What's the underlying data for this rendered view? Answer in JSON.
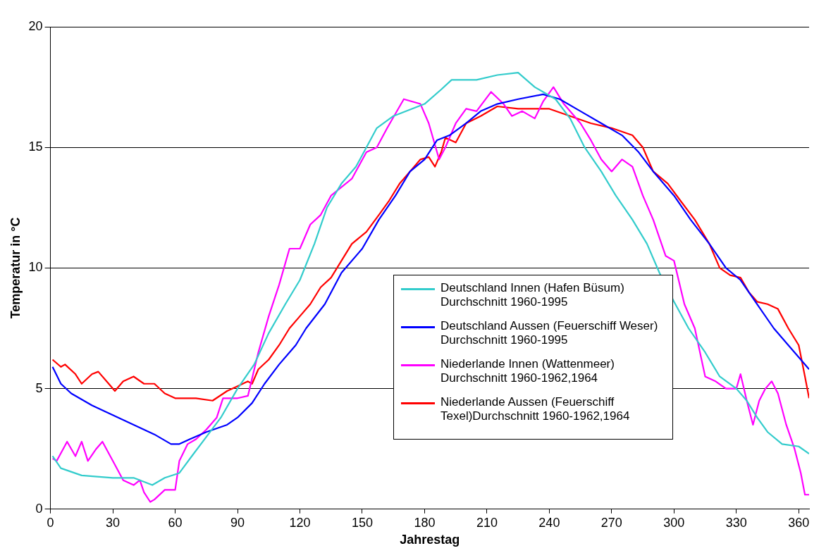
{
  "chart_data": {
    "type": "line",
    "xlabel": "Jahrestag",
    "ylabel": "Temperatur in °C",
    "xlim": [
      0,
      365
    ],
    "xticks": [
      0,
      30,
      60,
      90,
      120,
      150,
      180,
      210,
      240,
      270,
      300,
      330,
      360
    ],
    "ylim": [
      0,
      20
    ],
    "yticks": [
      0,
      5,
      10,
      15,
      20
    ],
    "grid": "y",
    "legend": "bottom right",
    "marker": "none",
    "line_style": "solid",
    "series": [
      {
        "name": "Deutschland Innen (Hafen Büsum) Durchschnitt 1960-1995",
        "color": "#33cccc",
        "x": [
          1,
          5,
          15,
          30,
          40,
          49,
          55,
          62,
          68,
          75,
          82,
          90,
          98,
          105,
          113,
          120,
          127,
          133,
          140,
          147,
          152,
          157,
          165,
          180,
          188,
          193,
          205,
          215,
          225,
          233,
          243,
          250,
          257,
          265,
          272,
          280,
          287,
          293,
          300,
          307,
          315,
          322,
          330,
          335,
          340,
          345,
          352,
          360,
          365
        ],
        "values": [
          2.2,
          1.7,
          1.4,
          1.3,
          1.3,
          1.0,
          1.3,
          1.5,
          2.2,
          3.0,
          3.8,
          5.0,
          6.0,
          7.3,
          8.5,
          9.5,
          11.0,
          12.5,
          13.5,
          14.2,
          15.0,
          15.8,
          16.3,
          16.8,
          17.4,
          17.8,
          17.8,
          18.0,
          18.1,
          17.5,
          17.0,
          16.2,
          15.0,
          14.0,
          13.0,
          12.0,
          11.0,
          9.8,
          8.6,
          7.5,
          6.5,
          5.5,
          5.0,
          4.5,
          3.8,
          3.2,
          2.7,
          2.6,
          2.3
        ]
      },
      {
        "name": "Deutschland Aussen (Feuerschiff Weser) Durchschnitt 1960-1995",
        "color": "#0000ff",
        "x": [
          1,
          5,
          10,
          20,
          30,
          40,
          50,
          58,
          62,
          67,
          75,
          85,
          90,
          97,
          103,
          110,
          118,
          123,
          132,
          140,
          150,
          158,
          166,
          173,
          180,
          186,
          192,
          200,
          207,
          215,
          225,
          237,
          245,
          255,
          265,
          275,
          283,
          290,
          300,
          308,
          317,
          325,
          332,
          340,
          348,
          355,
          361,
          365
        ],
        "values": [
          5.9,
          5.2,
          4.8,
          4.3,
          3.9,
          3.5,
          3.1,
          2.7,
          2.7,
          2.9,
          3.2,
          3.5,
          3.8,
          4.4,
          5.2,
          6.0,
          6.8,
          7.5,
          8.5,
          9.8,
          10.8,
          12.0,
          13.0,
          14.0,
          14.5,
          15.3,
          15.5,
          16.0,
          16.5,
          16.8,
          17.0,
          17.2,
          17.0,
          16.5,
          16.0,
          15.5,
          14.8,
          14.0,
          13.0,
          12.0,
          11.0,
          10.0,
          9.5,
          8.5,
          7.5,
          6.8,
          6.2,
          5.8
        ]
      },
      {
        "name": "Niederlande Innen (Wattenmeer) Durchschnitt 1960-1962,1964",
        "color": "#ff00ff",
        "x": [
          1,
          3,
          8,
          12,
          15,
          18,
          22,
          25,
          30,
          35,
          40,
          43,
          45,
          48,
          50,
          55,
          60,
          62,
          66,
          70,
          75,
          80,
          83,
          90,
          95,
          100,
          105,
          110,
          115,
          120,
          125,
          130,
          135,
          145,
          152,
          157,
          162,
          170,
          178,
          182,
          187,
          190,
          195,
          200,
          205,
          212,
          218,
          222,
          227,
          233,
          237,
          242,
          247,
          255,
          260,
          265,
          270,
          275,
          280,
          285,
          290,
          296,
          300,
          305,
          310,
          315,
          320,
          325,
          330,
          332,
          335,
          338,
          341,
          344,
          347,
          350,
          354,
          358,
          361,
          363,
          365
        ],
        "values": [
          2.1,
          2.0,
          2.8,
          2.2,
          2.8,
          2.0,
          2.5,
          2.8,
          2.0,
          1.2,
          1.0,
          1.2,
          0.7,
          0.3,
          0.4,
          0.8,
          0.8,
          2.0,
          2.7,
          2.9,
          3.3,
          3.8,
          4.6,
          4.6,
          4.7,
          6.5,
          8.0,
          9.3,
          10.8,
          10.8,
          11.8,
          12.2,
          13.0,
          13.7,
          14.8,
          15.0,
          15.8,
          17.0,
          16.8,
          16.0,
          14.5,
          15.0,
          16.0,
          16.6,
          16.5,
          17.3,
          16.8,
          16.3,
          16.5,
          16.2,
          16.9,
          17.5,
          16.8,
          16.0,
          15.3,
          14.5,
          14.0,
          14.5,
          14.2,
          13.0,
          12.0,
          10.5,
          10.3,
          8.5,
          7.5,
          5.5,
          5.3,
          5.0,
          5.0,
          5.6,
          4.5,
          3.5,
          4.5,
          5.0,
          5.3,
          4.8,
          3.5,
          2.5,
          1.5,
          0.6,
          0.6
        ]
      },
      {
        "name": "Niederlande Aussen (Feuerschiff Texel)Durchschnitt 1960-1962,1964",
        "color": "#ff0000",
        "x": [
          1,
          5,
          7,
          12,
          15,
          20,
          23,
          27,
          31,
          35,
          40,
          45,
          50,
          55,
          60,
          70,
          78,
          85,
          90,
          95,
          97,
          100,
          105,
          110,
          115,
          120,
          125,
          130,
          135,
          140,
          145,
          152,
          158,
          163,
          168,
          173,
          178,
          182,
          185,
          188,
          190,
          195,
          200,
          207,
          215,
          225,
          240,
          250,
          260,
          270,
          280,
          285,
          290,
          297,
          303,
          310,
          317,
          322,
          327,
          332,
          336,
          340,
          345,
          350,
          355,
          360,
          363,
          365
        ],
        "values": [
          6.2,
          5.9,
          6.0,
          5.6,
          5.2,
          5.6,
          5.7,
          5.3,
          4.9,
          5.3,
          5.5,
          5.2,
          5.2,
          4.8,
          4.6,
          4.6,
          4.5,
          4.9,
          5.1,
          5.3,
          5.2,
          5.8,
          6.2,
          6.8,
          7.5,
          8.0,
          8.5,
          9.2,
          9.6,
          10.3,
          11.0,
          11.5,
          12.2,
          12.8,
          13.5,
          14.0,
          14.5,
          14.6,
          14.2,
          14.8,
          15.4,
          15.2,
          16.0,
          16.3,
          16.7,
          16.6,
          16.6,
          16.3,
          16.0,
          15.8,
          15.5,
          15.0,
          14.0,
          13.5,
          12.8,
          12.0,
          11.0,
          10.0,
          9.7,
          9.6,
          9.0,
          8.6,
          8.5,
          8.3,
          7.5,
          6.8,
          5.5,
          4.6
        ]
      }
    ]
  }
}
